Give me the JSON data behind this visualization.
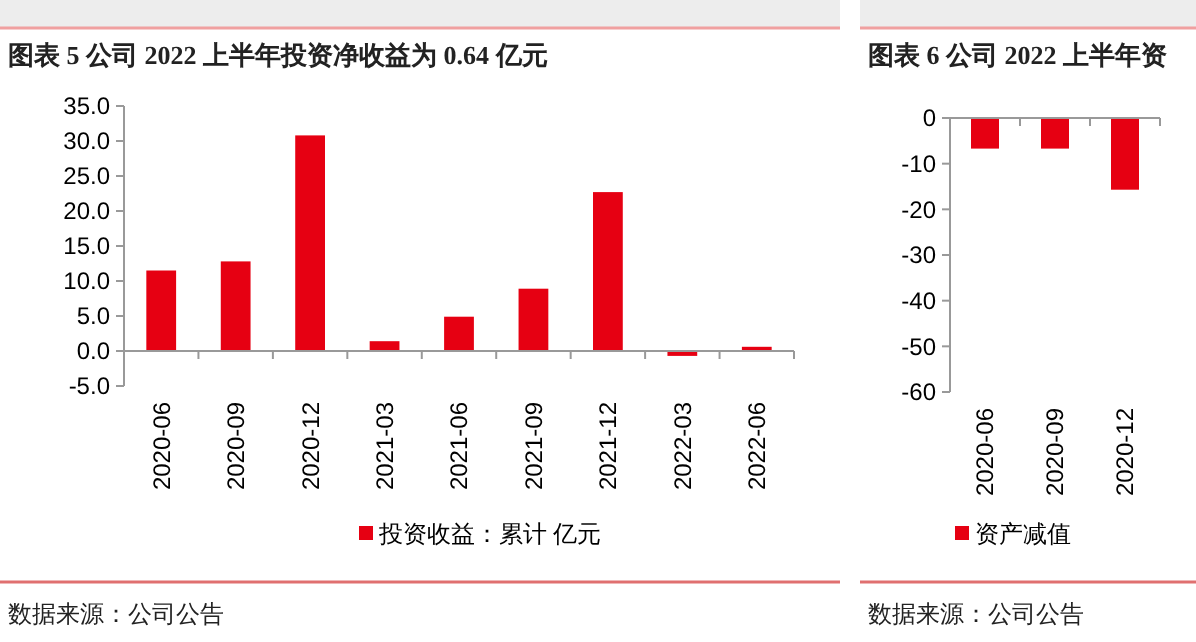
{
  "chart_data": [
    {
      "type": "bar",
      "title": "图表 5 公司 2022 上半年投资净收益为 0.64 亿元",
      "categories": [
        "2020-06",
        "2020-09",
        "2020-12",
        "2021-03",
        "2021-06",
        "2021-09",
        "2021-12",
        "2022-03",
        "2022-06"
      ],
      "series": [
        {
          "name": "投资收益：累计 亿元",
          "color": "#e60012",
          "values": [
            11.5,
            12.8,
            30.8,
            1.4,
            4.9,
            8.9,
            22.7,
            -0.7,
            0.6
          ]
        }
      ],
      "ylim": [
        -5,
        35
      ],
      "yticks": [
        {
          "value": -5,
          "label": "-5.0"
        },
        {
          "value": 0,
          "label": "0.0"
        },
        {
          "value": 5,
          "label": "5.0"
        },
        {
          "value": 10,
          "label": "10.0"
        },
        {
          "value": 15,
          "label": "15.0"
        },
        {
          "value": 20,
          "label": "20.0"
        },
        {
          "value": 25,
          "label": "25.0"
        },
        {
          "value": 30,
          "label": "30.0"
        },
        {
          "value": 35,
          "label": "35.0"
        }
      ],
      "grid": false,
      "legend": "bottom",
      "annotations": [
        "数据来源：公司公告"
      ]
    },
    {
      "type": "bar",
      "title": "图表 6 公司 2022 上半年资",
      "categories": [
        "2020-06",
        "2020-09",
        "2020-12"
      ],
      "series": [
        {
          "name": "资产减值",
          "color": "#e60012",
          "values": [
            -6.7,
            -6.7,
            -15.7
          ]
        }
      ],
      "ylim": [
        -60,
        0
      ],
      "yticks": [
        -60,
        -50,
        -40,
        -30,
        -20,
        -10,
        0
      ],
      "grid": false,
      "legend": "bottom",
      "annotations": [
        "数据来源：公司公告"
      ]
    }
  ]
}
